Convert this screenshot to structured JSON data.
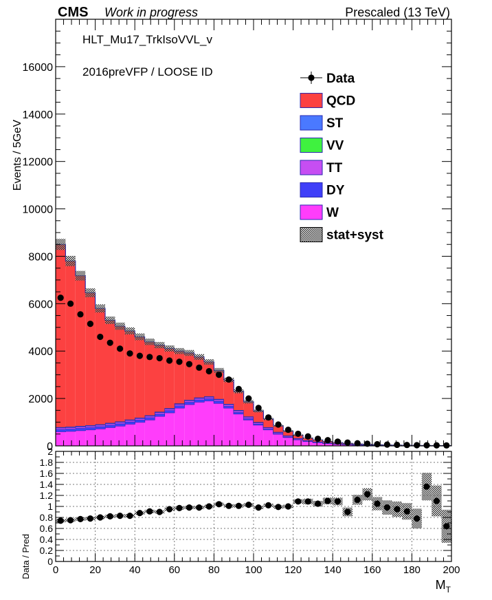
{
  "header": {
    "cms": "CMS",
    "status": "Work in progress",
    "energy": "Prescaled (13 TeV)"
  },
  "annotations": {
    "trigger": "HLT_Mu17_TrkIsoVVL_v",
    "era_id": "2016preVFP / LOOSE ID"
  },
  "colors": {
    "QCD": "#fc4141",
    "ST": "#4a79ff",
    "VV": "#3ff23f",
    "TT": "#c64ef2",
    "DY": "#3f3ff8",
    "W": "#ff3dfb",
    "data": "#000000"
  },
  "legend": {
    "placement": "top-right",
    "entries": [
      "Data",
      "QCD",
      "ST",
      "VV",
      "TT",
      "DY",
      "W",
      "stat+syst"
    ]
  },
  "chart_data": [
    {
      "type": "bar",
      "stacked": true,
      "ylabel": "Events / 5GeV",
      "xlim": [
        0,
        200
      ],
      "ylim": [
        0,
        18000
      ],
      "yticks": [
        0,
        2000,
        4000,
        6000,
        8000,
        10000,
        12000,
        14000,
        16000
      ],
      "bin_width": 5,
      "bin_low_edges": [
        0,
        5,
        10,
        15,
        20,
        25,
        30,
        35,
        40,
        45,
        50,
        55,
        60,
        65,
        70,
        75,
        80,
        85,
        90,
        95,
        100,
        105,
        110,
        115,
        120,
        125,
        130,
        135,
        140,
        145,
        150,
        155,
        160,
        165,
        170,
        175,
        180,
        185,
        190,
        195
      ],
      "series": [
        {
          "name": "W",
          "values": [
            600,
            620,
            650,
            680,
            720,
            780,
            840,
            920,
            1000,
            1100,
            1250,
            1400,
            1600,
            1750,
            1850,
            1900,
            1800,
            1600,
            1350,
            1100,
            880,
            680,
            500,
            360,
            260,
            190,
            140,
            100,
            72,
            52,
            38,
            28,
            20,
            15,
            11,
            8,
            6,
            5,
            4,
            3
          ]
        },
        {
          "name": "DY",
          "values": [
            100,
            100,
            100,
            100,
            100,
            100,
            100,
            100,
            100,
            100,
            100,
            100,
            100,
            100,
            100,
            100,
            90,
            80,
            70,
            60,
            50,
            40,
            30,
            25,
            20,
            15,
            12,
            10,
            8,
            6,
            5,
            4,
            3,
            2,
            2,
            1,
            1,
            1,
            1,
            1
          ]
        },
        {
          "name": "TT",
          "values": [
            60,
            60,
            60,
            60,
            60,
            60,
            60,
            60,
            60,
            60,
            60,
            60,
            60,
            60,
            60,
            60,
            60,
            60,
            60,
            55,
            50,
            45,
            40,
            35,
            30,
            25,
            20,
            18,
            15,
            12,
            10,
            8,
            6,
            5,
            4,
            3,
            2,
            2,
            1,
            1
          ]
        },
        {
          "name": "VV",
          "values": [
            10,
            10,
            10,
            10,
            10,
            10,
            10,
            10,
            10,
            10,
            10,
            10,
            10,
            10,
            10,
            10,
            10,
            10,
            10,
            8,
            8,
            7,
            6,
            5,
            4,
            3,
            3,
            2,
            2,
            2,
            1,
            1,
            1,
            1,
            1,
            1,
            1,
            1,
            1,
            1
          ]
        },
        {
          "name": "ST",
          "values": [
            20,
            20,
            20,
            20,
            20,
            20,
            20,
            20,
            20,
            20,
            20,
            20,
            20,
            20,
            20,
            20,
            20,
            20,
            20,
            18,
            16,
            14,
            12,
            10,
            8,
            6,
            5,
            4,
            3,
            3,
            2,
            2,
            2,
            1,
            1,
            1,
            1,
            1,
            1,
            1
          ]
        },
        {
          "name": "QCD",
          "values": [
            7710,
            6990,
            6340,
            5590,
            4890,
            4330,
            4020,
            3740,
            3410,
            3100,
            2810,
            2520,
            2210,
            1980,
            1710,
            1450,
            1200,
            1010,
            790,
            620,
            470,
            350,
            260,
            190,
            130,
            90,
            70,
            50,
            40,
            32,
            26,
            20,
            16,
            13,
            10,
            8,
            7,
            6,
            5,
            4
          ]
        }
      ],
      "data": {
        "name": "Data",
        "values": [
          6250,
          6000,
          5550,
          5150,
          4600,
          4350,
          4100,
          3900,
          3800,
          3750,
          3700,
          3600,
          3550,
          3450,
          3300,
          3150,
          3000,
          2800,
          2400,
          2000,
          1600,
          1200,
          900,
          680,
          510,
          400,
          300,
          240,
          180,
          140,
          110,
          90,
          70,
          55,
          45,
          38,
          30,
          25,
          22,
          20
        ]
      },
      "uncertainty_band": {
        "name": "stat+syst"
      }
    },
    {
      "type": "scatter",
      "xlabel": "M_T",
      "ylabel": "Data / Pred",
      "xlim": [
        0,
        200
      ],
      "ylim": [
        0,
        2
      ],
      "xticks": [
        0,
        20,
        40,
        60,
        80,
        100,
        120,
        140,
        160,
        180,
        200
      ],
      "yticks": [
        0,
        0.2,
        0.4,
        0.6,
        0.8,
        1,
        1.2,
        1.4,
        1.6,
        1.8,
        2
      ],
      "grid": true,
      "x": [
        2.5,
        7.5,
        12.5,
        17.5,
        22.5,
        27.5,
        32.5,
        37.5,
        42.5,
        47.5,
        52.5,
        57.5,
        62.5,
        67.5,
        72.5,
        77.5,
        82.5,
        87.5,
        92.5,
        97.5,
        102.5,
        107.5,
        112.5,
        117.5,
        122.5,
        127.5,
        132.5,
        137.5,
        142.5,
        147.5,
        152.5,
        157.5,
        162.5,
        167.5,
        172.5,
        177.5,
        182.5,
        187.5,
        192.5,
        197.5
      ],
      "y": [
        0.74,
        0.75,
        0.77,
        0.78,
        0.8,
        0.82,
        0.83,
        0.83,
        0.88,
        0.91,
        0.9,
        0.95,
        0.97,
        0.98,
        0.98,
        1.0,
        1.04,
        1.01,
        1.01,
        1.03,
        0.98,
        1.02,
        0.99,
        1.0,
        1.09,
        1.09,
        1.05,
        1.1,
        1.09,
        0.9,
        1.12,
        1.22,
        1.05,
        0.98,
        0.95,
        0.91,
        0.78,
        1.36,
        1.1,
        0.64
      ],
      "err": [
        0.03,
        0.03,
        0.03,
        0.03,
        0.03,
        0.03,
        0.03,
        0.03,
        0.03,
        0.03,
        0.03,
        0.03,
        0.03,
        0.03,
        0.03,
        0.03,
        0.03,
        0.03,
        0.03,
        0.03,
        0.03,
        0.03,
        0.03,
        0.03,
        0.04,
        0.05,
        0.05,
        0.06,
        0.07,
        0.08,
        0.09,
        0.11,
        0.12,
        0.13,
        0.14,
        0.15,
        0.18,
        0.25,
        0.28,
        0.3
      ]
    }
  ]
}
